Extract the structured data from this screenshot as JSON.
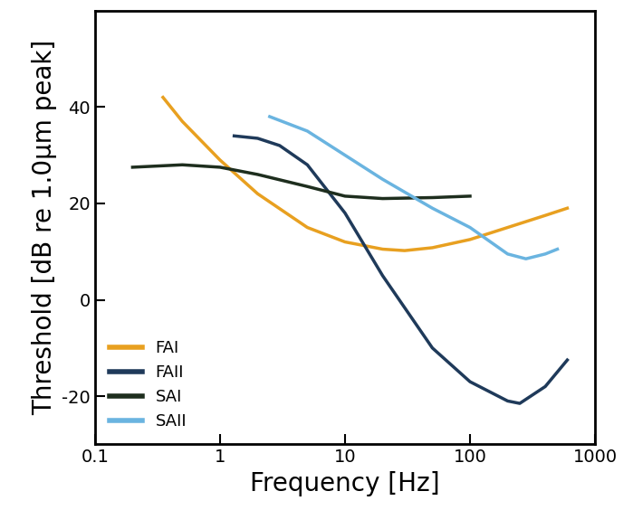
{
  "chart_data": {
    "type": "line",
    "x_label": "Frequency [Hz]",
    "y_label": "Threshold [dB re 1.0µm peak]",
    "log": "x",
    "xlim": [
      0.1,
      1000
    ],
    "xticks": [
      0.1,
      1,
      10,
      100,
      1000
    ],
    "ylim": [
      -30,
      60
    ],
    "yticks": [
      -20,
      0,
      20,
      40
    ],
    "legend": "lower left",
    "series": [
      {
        "name": "FAI",
        "color": "#e8a020",
        "x": [
          0.35,
          0.5,
          1,
          2,
          5,
          10,
          20,
          30,
          50,
          100,
          200,
          400,
          600
        ],
        "values": [
          42,
          37,
          29,
          22,
          15,
          12,
          10.5,
          10.2,
          10.8,
          12.5,
          15,
          17.5,
          19
        ]
      },
      {
        "name": "FAII",
        "color": "#1f3a5a",
        "x": [
          1.3,
          2,
          3,
          5,
          10,
          20,
          50,
          100,
          200,
          250,
          400,
          600
        ],
        "values": [
          34,
          33.5,
          32,
          28,
          18,
          5,
          -10,
          -17,
          -21,
          -21.5,
          -18,
          -12.5
        ]
      },
      {
        "name": "SAI",
        "color": "#1e2e1e",
        "x": [
          0.2,
          0.5,
          1,
          2,
          5,
          10,
          20,
          50,
          100
        ],
        "values": [
          27.5,
          28,
          27.5,
          26,
          23.5,
          21.5,
          21,
          21.2,
          21.5
        ]
      },
      {
        "name": "SAII",
        "color": "#6ab4e0",
        "x": [
          2.5,
          5,
          10,
          20,
          50,
          100,
          200,
          280,
          400,
          500
        ],
        "values": [
          38,
          35,
          30,
          25,
          19,
          15,
          9.5,
          8.5,
          9.5,
          10.5
        ]
      }
    ]
  }
}
